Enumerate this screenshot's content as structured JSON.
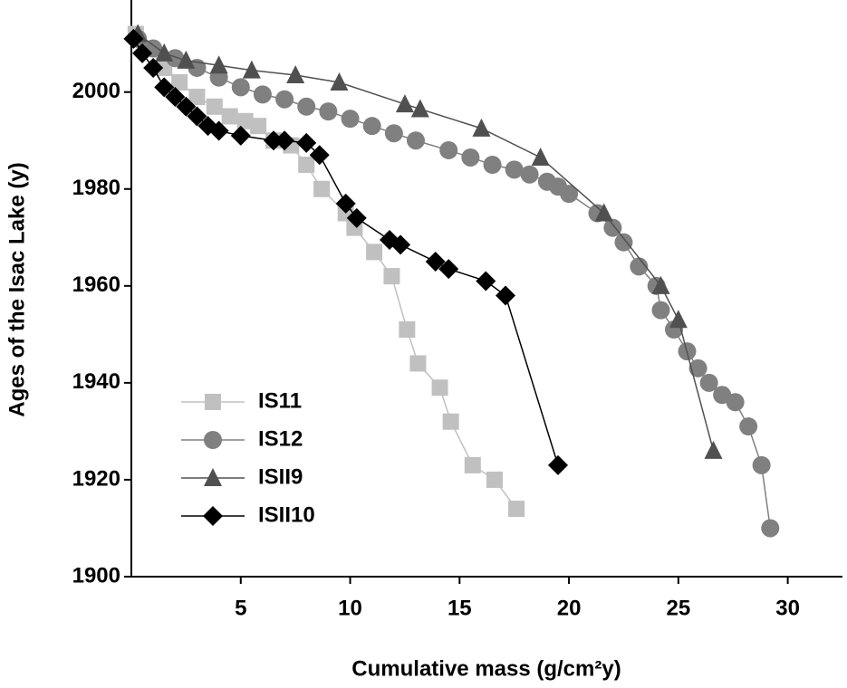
{
  "chart_data": {
    "type": "line",
    "xlabel": "Cumulative mass (g/cm²y)",
    "ylabel": "Ages of the Isac Lake (y)",
    "xlim": [
      0,
      32.5
    ],
    "ylim": [
      1900,
      2019
    ],
    "xticks": [
      5,
      10,
      15,
      20,
      25,
      30
    ],
    "yticks": [
      1900,
      1920,
      1940,
      1960,
      1980,
      2000
    ],
    "legend": "lower left",
    "series": [
      {
        "name": "IS11",
        "color": "#c0c0c0",
        "marker": "square",
        "x": [
          0.2,
          0.8,
          1.5,
          2.2,
          3,
          3.8,
          4.5,
          5.2,
          5.8,
          6.5,
          7.3,
          8,
          8.7,
          9.8,
          10.2,
          11.1,
          11.9,
          12.6,
          13.1,
          14.1,
          14.6,
          15.6,
          16.6,
          17.6
        ],
        "values": [
          2012,
          2009,
          2005,
          2002,
          1999,
          1997,
          1995,
          1994,
          1993,
          1990,
          1989,
          1985,
          1980,
          1975,
          1972,
          1967,
          1962,
          1951,
          1944,
          1939,
          1932,
          1923,
          1920,
          1914
        ]
      },
      {
        "name": "IS12",
        "color": "#808080",
        "marker": "circle",
        "x": [
          0.3,
          1,
          2,
          3,
          4,
          5,
          6,
          7,
          8,
          9,
          10,
          11,
          12,
          13,
          14.5,
          15.5,
          16.5,
          17.5,
          18.2,
          19,
          19.5,
          20,
          21.3,
          22,
          22.5,
          23.2,
          24,
          24.2,
          24.8,
          25.4,
          25.9,
          26.4,
          27,
          27.6,
          28.2,
          28.8,
          29.2
        ],
        "values": [
          2011,
          2009,
          2007,
          2005,
          2003,
          2001,
          1999.5,
          1998.5,
          1997,
          1996,
          1994.5,
          1993,
          1991.5,
          1990,
          1988,
          1986.5,
          1985,
          1984,
          1983,
          1981.5,
          1980.5,
          1979,
          1975,
          1972,
          1969,
          1964,
          1960,
          1955,
          1951,
          1946.5,
          1943,
          1940,
          1937.5,
          1936,
          1931,
          1923,
          1910
        ]
      },
      {
        "name": "ISII9",
        "color": "#505050",
        "marker": "triangle",
        "x": [
          0.3,
          1.5,
          2.5,
          4,
          5.5,
          7.5,
          9.5,
          12.5,
          13.2,
          16,
          18.7,
          21.6,
          24.2,
          25,
          26.6
        ],
        "values": [
          2012,
          2008,
          2006.5,
          2005.5,
          2004.5,
          2003.5,
          2002,
          1997.5,
          1996.5,
          1992.5,
          1986.5,
          1975,
          1960,
          1953,
          1926
        ]
      },
      {
        "name": "ISII10",
        "color": "#000000",
        "marker": "diamond",
        "x": [
          0.1,
          0.5,
          1,
          1.5,
          2,
          2.5,
          3,
          3.5,
          4,
          5,
          6.5,
          7,
          8,
          8.6,
          9.8,
          10.3,
          11.8,
          12.3,
          13.9,
          14.5,
          16.2,
          17.1,
          19.5
        ],
        "values": [
          2011,
          2008,
          2005,
          2001,
          1999,
          1997,
          1995,
          1993,
          1992,
          1991,
          1990,
          1990,
          1989.5,
          1987,
          1977,
          1974,
          1969.5,
          1968.5,
          1965,
          1963.5,
          1961,
          1958,
          1923
        ]
      }
    ]
  }
}
